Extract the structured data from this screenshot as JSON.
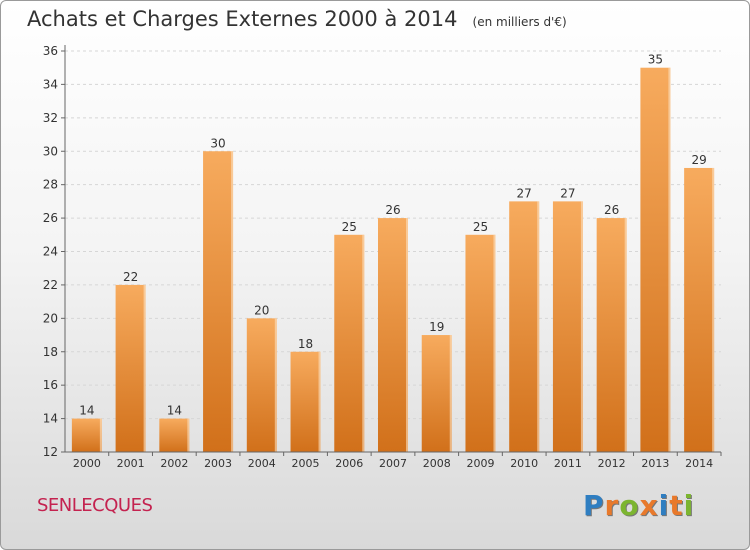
{
  "header": {
    "title": "Achats et Charges Externes 2000 à 2014",
    "unit": "(en milliers d'€)"
  },
  "commune": "SENLECQUES",
  "logo": {
    "letters": [
      "P",
      "r",
      "o",
      "x",
      "i",
      "t",
      "i"
    ],
    "colors": [
      "#2f7ec1",
      "#e8792b",
      "#7cb530",
      "#e8792b",
      "#2f7ec1",
      "#e8792b",
      "#7cb530"
    ]
  },
  "colors": {
    "bar_light": "#f7ab5e",
    "bar_dark": "#d1701a",
    "axis": "#666666",
    "grid": "#d6d6d6"
  },
  "chart_data": {
    "type": "bar",
    "title": "Achats et Charges Externes 2000 à 2014",
    "subtitle": "(en milliers d'€)",
    "categories": [
      "2000",
      "2001",
      "2002",
      "2003",
      "2004",
      "2005",
      "2006",
      "2007",
      "2008",
      "2009",
      "2010",
      "2011",
      "2012",
      "2013",
      "2014"
    ],
    "values": [
      14,
      22,
      14,
      30,
      20,
      18,
      25,
      26,
      19,
      25,
      27,
      27,
      26,
      35,
      29
    ],
    "ylim": [
      12,
      36
    ],
    "yticks": [
      12,
      14,
      16,
      18,
      20,
      22,
      24,
      26,
      28,
      30,
      32,
      34,
      36
    ],
    "xlabel": "",
    "ylabel": "",
    "grid": true,
    "data_labels": true
  }
}
